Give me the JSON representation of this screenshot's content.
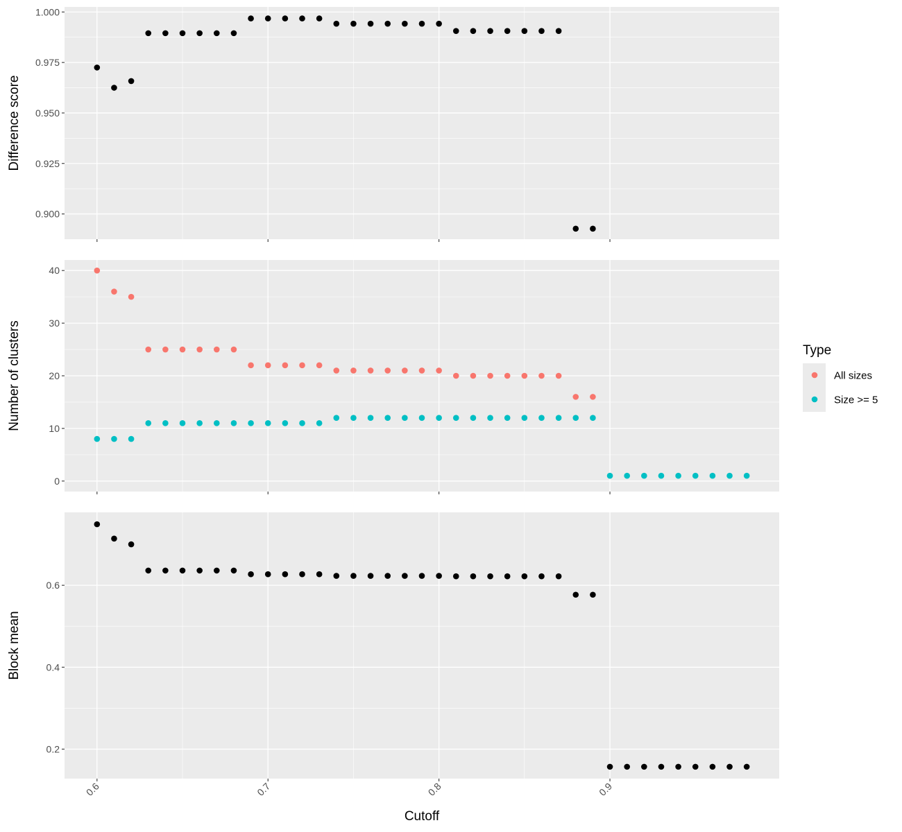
{
  "figure": {
    "x_axis_title": "Cutoff",
    "legend_title": "Type"
  },
  "colors": {
    "panel_bg": "#ebebeb",
    "grid_major": "#ffffff",
    "tick_text": "#4d4d4d",
    "black_points": "#000000",
    "all_sizes": "#f8766d",
    "size_ge_5": "#00bfc4"
  },
  "chart_data": [
    {
      "type": "scatter",
      "ylabel": "Difference score",
      "xlabel": "",
      "xlim": [
        0.581,
        0.999
      ],
      "ylim": [
        0.8875,
        1.0025
      ],
      "x_ticks": [
        0.6,
        0.7,
        0.8,
        0.9
      ],
      "y_ticks": [
        0.9,
        0.925,
        0.95,
        0.975,
        1.0
      ],
      "y_tick_labels": [
        "0.900",
        "0.925",
        "0.950",
        "0.975",
        "1.000"
      ],
      "x_tick_labels_shown": false,
      "grid": true,
      "series": [
        {
          "color": "#000000",
          "x": [
            0.6,
            0.61,
            0.62,
            0.63,
            0.64,
            0.65,
            0.66,
            0.67,
            0.68,
            0.69,
            0.7,
            0.71,
            0.72,
            0.73,
            0.74,
            0.75,
            0.76,
            0.77,
            0.78,
            0.79,
            0.8,
            0.81,
            0.82,
            0.83,
            0.84,
            0.85,
            0.86,
            0.87,
            0.88,
            0.89
          ],
          "y": [
            0.9725,
            0.9625,
            0.9658,
            0.9895,
            0.9895,
            0.9895,
            0.9895,
            0.9895,
            0.9895,
            0.9968,
            0.9968,
            0.9968,
            0.9968,
            0.9968,
            0.9942,
            0.9942,
            0.9942,
            0.9942,
            0.9942,
            0.9942,
            0.9942,
            0.9906,
            0.9906,
            0.9906,
            0.9906,
            0.9906,
            0.9906,
            0.9906,
            0.8927,
            0.8927
          ]
        }
      ]
    },
    {
      "type": "scatter",
      "ylabel": "Number of clusters",
      "xlabel": "",
      "xlim": [
        0.581,
        0.999
      ],
      "ylim": [
        -2,
        42
      ],
      "x_ticks": [
        0.6,
        0.7,
        0.8,
        0.9
      ],
      "y_ticks": [
        0,
        10,
        20,
        30,
        40
      ],
      "y_tick_labels": [
        "0",
        "10",
        "20",
        "30",
        "40"
      ],
      "x_tick_labels_shown": false,
      "grid": true,
      "legend": "right",
      "series": [
        {
          "name": "All sizes",
          "color": "#f8766d",
          "x": [
            0.6,
            0.61,
            0.62,
            0.63,
            0.64,
            0.65,
            0.66,
            0.67,
            0.68,
            0.69,
            0.7,
            0.71,
            0.72,
            0.73,
            0.74,
            0.75,
            0.76,
            0.77,
            0.78,
            0.79,
            0.8,
            0.81,
            0.82,
            0.83,
            0.84,
            0.85,
            0.86,
            0.87,
            0.88,
            0.89
          ],
          "y": [
            40,
            36,
            35,
            25,
            25,
            25,
            25,
            25,
            25,
            22,
            22,
            22,
            22,
            22,
            21,
            21,
            21,
            21,
            21,
            21,
            21,
            20,
            20,
            20,
            20,
            20,
            20,
            20,
            16,
            16
          ]
        },
        {
          "name": "Size >= 5",
          "color": "#00bfc4",
          "x": [
            0.6,
            0.61,
            0.62,
            0.63,
            0.64,
            0.65,
            0.66,
            0.67,
            0.68,
            0.69,
            0.7,
            0.71,
            0.72,
            0.73,
            0.74,
            0.75,
            0.76,
            0.77,
            0.78,
            0.79,
            0.8,
            0.81,
            0.82,
            0.83,
            0.84,
            0.85,
            0.86,
            0.87,
            0.88,
            0.89,
            0.9,
            0.91,
            0.92,
            0.93,
            0.94,
            0.95,
            0.96,
            0.97,
            0.98
          ],
          "y": [
            8,
            8,
            8,
            11,
            11,
            11,
            11,
            11,
            11,
            11,
            11,
            11,
            11,
            11,
            12,
            12,
            12,
            12,
            12,
            12,
            12,
            12,
            12,
            12,
            12,
            12,
            12,
            12,
            12,
            12,
            1,
            1,
            1,
            1,
            1,
            1,
            1,
            1,
            1
          ]
        }
      ]
    },
    {
      "type": "scatter",
      "ylabel": "Block mean",
      "xlabel": "Cutoff",
      "xlim": [
        0.581,
        0.999
      ],
      "ylim": [
        0.128,
        0.778
      ],
      "x_ticks": [
        0.6,
        0.7,
        0.8,
        0.9
      ],
      "x_tick_labels": [
        "0.6",
        "0.7",
        "0.8",
        "0.9"
      ],
      "y_ticks": [
        0.2,
        0.4,
        0.6
      ],
      "y_tick_labels": [
        "0.2",
        "0.4",
        "0.6"
      ],
      "x_tick_labels_shown": true,
      "grid": true,
      "series": [
        {
          "color": "#000000",
          "x": [
            0.6,
            0.61,
            0.62,
            0.63,
            0.64,
            0.65,
            0.66,
            0.67,
            0.68,
            0.69,
            0.7,
            0.71,
            0.72,
            0.73,
            0.74,
            0.75,
            0.76,
            0.77,
            0.78,
            0.79,
            0.8,
            0.81,
            0.82,
            0.83,
            0.84,
            0.85,
            0.86,
            0.87,
            0.88,
            0.89,
            0.9,
            0.91,
            0.92,
            0.93,
            0.94,
            0.95,
            0.96,
            0.97,
            0.98
          ],
          "y": [
            0.749,
            0.714,
            0.7,
            0.636,
            0.636,
            0.636,
            0.636,
            0.636,
            0.636,
            0.627,
            0.627,
            0.627,
            0.627,
            0.627,
            0.623,
            0.623,
            0.623,
            0.623,
            0.623,
            0.623,
            0.623,
            0.622,
            0.622,
            0.622,
            0.622,
            0.622,
            0.622,
            0.622,
            0.577,
            0.577,
            0.157,
            0.157,
            0.157,
            0.157,
            0.157,
            0.157,
            0.157,
            0.157,
            0.157
          ]
        }
      ]
    }
  ]
}
